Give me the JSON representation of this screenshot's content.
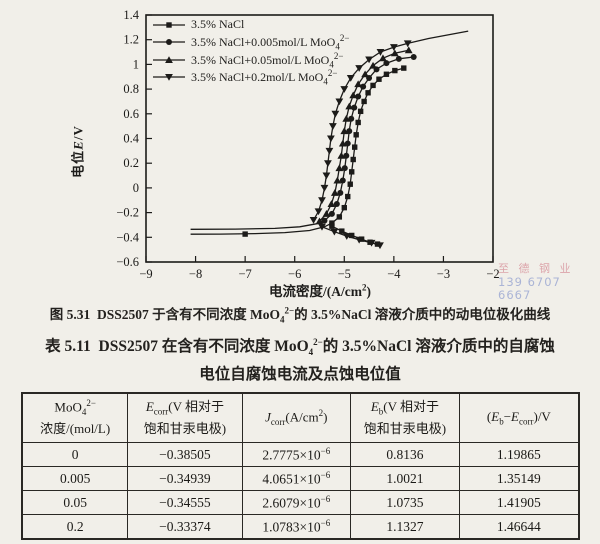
{
  "page": {
    "background": "#f1efe9",
    "ink": "#1c1b19"
  },
  "watermark": {
    "line1": "至 德 钢 业",
    "line2": "139 6707 6667",
    "color1": "#d998a0",
    "color2": "#a3aed4"
  },
  "figure_caption": {
    "label": "图 5.31",
    "text": "DSS2507 于含有不同浓度 MoO₄²⁻的 3.5%NaCl 溶液介质中的动电位极化曲线",
    "text_html": "DSS2507 于含有不同浓度 MoO<sub>4</sub><sup>2−</sup>的 3.5%NaCl 溶液介质中的动电位极化曲线"
  },
  "table_caption": {
    "label": "表 5.11",
    "line1": "DSS2507 在含有不同浓度 MoO₄²⁻的 3.5%NaCl 溶液介质中的自腐蚀",
    "line1_html": "DSS2507 在含有不同浓度 MoO<sub>4</sub><sup>2−</sup>的 3.5%NaCl 溶液介质中的自腐蚀",
    "line2": "电位自腐蚀电流及点蚀电位值"
  },
  "chart_data": {
    "type": "line",
    "title": "",
    "xlabel": "电流密度/(A/cm²)",
    "xlabel_html": "电流密度/(A/cm<sup>2</sup>)",
    "ylabel": "电位E/V",
    "ylabel_html": "电位<i>E</i>/V",
    "xlim": [
      -9,
      -2
    ],
    "ylim": [
      -0.6,
      1.4
    ],
    "xticks": [
      -9,
      -8,
      -7,
      -6,
      -5,
      -4,
      -3,
      -2
    ],
    "yticks": [
      -0.6,
      -0.4,
      -0.2,
      0,
      0.2,
      0.4,
      0.6,
      0.8,
      1.0,
      1.2,
      1.4
    ],
    "grid": false,
    "legend_position": "top-left",
    "series": [
      {
        "name": "3.5% NaCl",
        "label_html": "3.5% NaCl",
        "marker": "square",
        "color": "#1c1b19",
        "segments": [
          {
            "markers": false,
            "pts": [
              [
                -8.1,
                -0.375
              ],
              [
                -7.5,
                -0.374
              ],
              [
                -6.8,
                -0.37
              ],
              [
                -6.2,
                -0.362
              ],
              [
                -5.7,
                -0.345
              ],
              [
                -5.4,
                -0.315
              ],
              [
                -5.25,
                -0.285
              ]
            ]
          },
          {
            "markers": true,
            "pts": [
              [
                -7.0,
                -0.374
              ]
            ]
          },
          {
            "markers": true,
            "pts": [
              [
                -5.25,
                -0.285
              ],
              [
                -5.1,
                -0.235
              ],
              [
                -5.0,
                -0.16
              ],
              [
                -4.93,
                -0.07
              ],
              [
                -4.88,
                0.03
              ],
              [
                -4.85,
                0.13
              ],
              [
                -4.82,
                0.23
              ],
              [
                -4.79,
                0.33
              ],
              [
                -4.76,
                0.43
              ],
              [
                -4.72,
                0.53
              ],
              [
                -4.67,
                0.62
              ],
              [
                -4.6,
                0.7
              ],
              [
                -4.52,
                0.77
              ],
              [
                -4.42,
                0.83
              ],
              [
                -4.3,
                0.88
              ],
              [
                -4.15,
                0.92
              ],
              [
                -3.98,
                0.95
              ],
              [
                -3.8,
                0.97
              ]
            ]
          },
          {
            "markers": true,
            "pts": [
              [
                -5.25,
                -0.31
              ],
              [
                -5.05,
                -0.35
              ],
              [
                -4.85,
                -0.385
              ],
              [
                -4.65,
                -0.415
              ],
              [
                -4.48,
                -0.44
              ],
              [
                -4.33,
                -0.455
              ]
            ]
          }
        ]
      },
      {
        "name": "3.5% NaCl+0.005mol/L MoO₄²⁻",
        "label_html": "3.5% NaCl+0.005mol/L MoO<sub>4</sub><sup>2−</sup>",
        "marker": "circle",
        "color": "#1c1b19",
        "segments": [
          {
            "markers": false,
            "pts": [
              [
                -8.1,
                -0.335
              ],
              [
                -7.2,
                -0.334
              ],
              [
                -6.4,
                -0.328
              ],
              [
                -5.9,
                -0.315
              ],
              [
                -5.55,
                -0.29
              ],
              [
                -5.4,
                -0.265
              ]
            ]
          },
          {
            "markers": true,
            "pts": [
              [
                -5.4,
                -0.265
              ],
              [
                -5.25,
                -0.21
              ],
              [
                -5.15,
                -0.13
              ],
              [
                -5.08,
                -0.04
              ],
              [
                -5.03,
                0.06
              ],
              [
                -4.99,
                0.16
              ],
              [
                -4.96,
                0.26
              ],
              [
                -4.93,
                0.36
              ],
              [
                -4.9,
                0.46
              ],
              [
                -4.86,
                0.56
              ],
              [
                -4.8,
                0.65
              ],
              [
                -4.72,
                0.74
              ],
              [
                -4.62,
                0.82
              ],
              [
                -4.5,
                0.89
              ],
              [
                -4.35,
                0.96
              ],
              [
                -4.15,
                1.01
              ],
              [
                -3.9,
                1.045
              ],
              [
                -3.6,
                1.06
              ]
            ]
          }
        ]
      },
      {
        "name": "3.5% NaCl+0.05mol/L MoO₄²⁻",
        "label_html": "3.5% NaCl+0.05mol/L MoO<sub>4</sub><sup>2−</sup>",
        "marker": "triangle-up",
        "color": "#1c1b19",
        "segments": [
          {
            "markers": true,
            "pts": [
              [
                -5.5,
                -0.27
              ],
              [
                -5.36,
                -0.21
              ],
              [
                -5.26,
                -0.13
              ],
              [
                -5.19,
                -0.04
              ],
              [
                -5.14,
                0.06
              ],
              [
                -5.1,
                0.16
              ],
              [
                -5.06,
                0.26
              ],
              [
                -5.03,
                0.36
              ],
              [
                -5.0,
                0.46
              ],
              [
                -4.96,
                0.56
              ],
              [
                -4.9,
                0.66
              ],
              [
                -4.82,
                0.75
              ],
              [
                -4.72,
                0.84
              ],
              [
                -4.58,
                0.92
              ],
              [
                -4.42,
                0.99
              ],
              [
                -4.22,
                1.05
              ],
              [
                -3.98,
                1.09
              ],
              [
                -3.7,
                1.115
              ]
            ]
          }
        ]
      },
      {
        "name": "3.5% NaCl+0.2mol/L MoO₄²⁻",
        "label_html": "3.5% NaCl+0.2mol/L MoO<sub>4</sub><sup>2−</sup>",
        "marker": "triangle-down",
        "color": "#1c1b19",
        "segments": [
          {
            "markers": true,
            "pts": [
              [
                -5.62,
                -0.26
              ],
              [
                -5.52,
                -0.19
              ],
              [
                -5.45,
                -0.1
              ],
              [
                -5.4,
                0.0
              ],
              [
                -5.36,
                0.1
              ],
              [
                -5.33,
                0.2
              ],
              [
                -5.3,
                0.3
              ],
              [
                -5.27,
                0.4
              ],
              [
                -5.23,
                0.5
              ],
              [
                -5.18,
                0.6
              ],
              [
                -5.1,
                0.7
              ],
              [
                -5.0,
                0.8
              ],
              [
                -4.87,
                0.89
              ],
              [
                -4.7,
                0.97
              ],
              [
                -4.5,
                1.04
              ],
              [
                -4.27,
                1.1
              ],
              [
                -4.0,
                1.14
              ],
              [
                -3.72,
                1.17
              ]
            ]
          },
          {
            "markers": false,
            "pts": [
              [
                -3.72,
                1.17
              ],
              [
                -3.3,
                1.21
              ],
              [
                -2.5,
                1.27
              ]
            ]
          },
          {
            "markers": true,
            "pts": [
              [
                -5.45,
                -0.315
              ],
              [
                -5.2,
                -0.355
              ],
              [
                -4.95,
                -0.39
              ],
              [
                -4.7,
                -0.42
              ],
              [
                -4.45,
                -0.445
              ],
              [
                -4.28,
                -0.465
              ]
            ]
          }
        ]
      }
    ]
  },
  "table": {
    "headers": [
      "MoO₄²⁻ 浓度/(mol/L)",
      "E corr (V 相对于 饱和甘汞电极)",
      "J corr (A/cm²)",
      "E b (V 相对于 饱和甘汞电极)",
      "(E b−E corr)/V"
    ],
    "headers_html": [
      "MoO<sub>4</sub><sup>2−</sup><br>浓度/(mol/L)",
      "<i>E</i><sub>corr</sub>(V 相对于<br>饱和甘汞电极)",
      "<i>J</i><sub>corr</sub>(A/cm<sup>2</sup>)",
      "<i>E</i><sub>b</sub>(V 相对于<br>饱和甘汞电极)",
      "(<i>E</i><sub>b</sub>−<i>E</i><sub>corr</sub>)/V"
    ],
    "col_widths_pct": [
      19,
      20.5,
      19.5,
      19.5,
      21.5
    ],
    "rows_html": [
      [
        "0",
        "−0.38505",
        "2.7775×10<sup>−6</sup>",
        "0.8136",
        "1.19865"
      ],
      [
        "0.005",
        "−0.34939",
        "4.0651×10<sup>−6</sup>",
        "1.0021",
        "1.35149"
      ],
      [
        "0.05",
        "−0.34555",
        "2.6079×10<sup>−6</sup>",
        "1.0735",
        "1.41905"
      ],
      [
        "0.2",
        "−0.33374",
        "1.0783×10<sup>−6</sup>",
        "1.1327",
        "1.46644"
      ]
    ]
  }
}
